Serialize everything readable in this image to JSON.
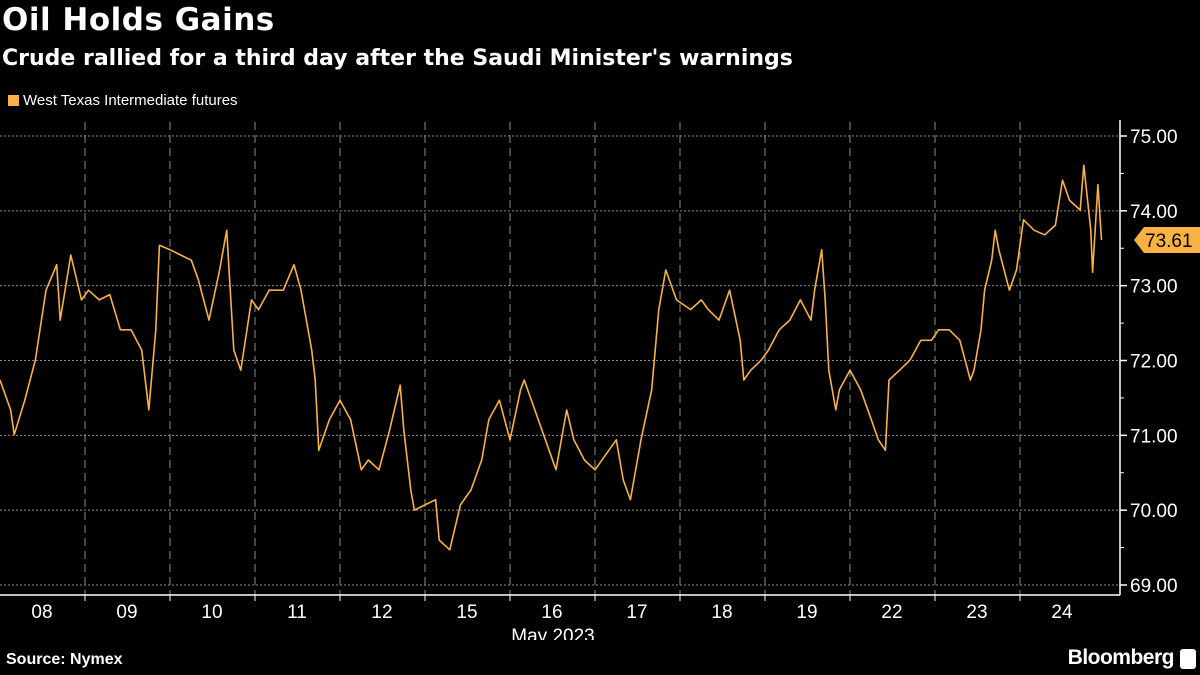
{
  "title": "Oil Holds Gains",
  "subtitle": "Crude rallied for a third day after the Saudi Minister's warnings",
  "source": "Source: Nymex",
  "brand": "Bloomberg",
  "colors": {
    "series": "#f9b143",
    "background": "#000000",
    "grid": "#8a8a8a"
  },
  "chart_data": {
    "type": "line",
    "title": "Oil Holds Gains",
    "legend": "top-left",
    "grid": true,
    "xlabel": "May 2023",
    "x_ticks": [
      "08",
      "09",
      "10",
      "11",
      "12",
      "15",
      "16",
      "17",
      "18",
      "19",
      "22",
      "23",
      "24"
    ],
    "y_ticks": [
      "69.00",
      "70.00",
      "71.00",
      "72.00",
      "73.00",
      "74.00",
      "75.00"
    ],
    "ylim": [
      69,
      75
    ],
    "y_axis_side": "right",
    "last_value_label": "73.61",
    "series": [
      {
        "name": "West Texas Intermediate futures",
        "points": [
          [
            "08 00:00",
            71.74
          ],
          [
            "08 03:00",
            71.34
          ],
          [
            "08 04:00",
            71.01
          ],
          [
            "08 07:00",
            71.47
          ],
          [
            "08 10:00",
            72.01
          ],
          [
            "08 13:00",
            72.94
          ],
          [
            "08 16:00",
            73.28
          ],
          [
            "08 17:00",
            72.54
          ],
          [
            "08 20:00",
            73.41
          ],
          [
            "08 23:00",
            72.81
          ],
          [
            "09 01:00",
            72.94
          ],
          [
            "09 04:00",
            72.81
          ],
          [
            "09 07:00",
            72.88
          ],
          [
            "09 10:00",
            72.41
          ],
          [
            "09 13:00",
            72.41
          ],
          [
            "09 16:00",
            72.14
          ],
          [
            "09 18:00",
            71.34
          ],
          [
            "09 20:00",
            72.41
          ],
          [
            "09 21:00",
            73.54
          ],
          [
            "10 00:00",
            73.48
          ],
          [
            "10 03:00",
            73.41
          ],
          [
            "10 06:00",
            73.34
          ],
          [
            "10 08:00",
            73.08
          ],
          [
            "10 11:00",
            72.54
          ],
          [
            "10 14:00",
            73.21
          ],
          [
            "10 16:00",
            73.74
          ],
          [
            "10 18:00",
            72.14
          ],
          [
            "10 20:00",
            71.87
          ],
          [
            "10 23:00",
            72.81
          ],
          [
            "11 01:00",
            72.68
          ],
          [
            "11 04:00",
            72.94
          ],
          [
            "11 08:00",
            72.94
          ],
          [
            "11 11:00",
            73.28
          ],
          [
            "11 13:00",
            72.94
          ],
          [
            "11 16:00",
            72.14
          ],
          [
            "11 17:00",
            71.74
          ],
          [
            "11 18:00",
            70.8
          ],
          [
            "11 21:00",
            71.21
          ],
          [
            "12 00:00",
            71.47
          ],
          [
            "12 03:00",
            71.21
          ],
          [
            "12 06:00",
            70.54
          ],
          [
            "12 08:00",
            70.67
          ],
          [
            "12 11:00",
            70.54
          ],
          [
            "12 14:00",
            71.07
          ],
          [
            "12 17:00",
            71.67
          ],
          [
            "12 18:00",
            71.07
          ],
          [
            "12 20:00",
            70.27
          ],
          [
            "12 21:00",
            70.0
          ],
          [
            "15 00:00",
            70.07
          ],
          [
            "15 03:00",
            70.14
          ],
          [
            "15 04:00",
            69.6
          ],
          [
            "15 07:00",
            69.47
          ],
          [
            "15 10:00",
            70.07
          ],
          [
            "15 13:00",
            70.27
          ],
          [
            "15 16:00",
            70.67
          ],
          [
            "15 18:00",
            71.21
          ],
          [
            "15 21:00",
            71.47
          ],
          [
            "16 00:00",
            70.94
          ],
          [
            "16 03:00",
            71.61
          ],
          [
            "16 04:00",
            71.74
          ],
          [
            "16 07:00",
            71.34
          ],
          [
            "16 10:00",
            70.94
          ],
          [
            "16 13:00",
            70.54
          ],
          [
            "16 16:00",
            71.34
          ],
          [
            "16 18:00",
            70.94
          ],
          [
            "16 21:00",
            70.67
          ],
          [
            "17 00:00",
            70.54
          ],
          [
            "17 03:00",
            70.74
          ],
          [
            "17 06:00",
            70.94
          ],
          [
            "17 08:00",
            70.4
          ],
          [
            "17 10:00",
            70.14
          ],
          [
            "17 13:00",
            70.94
          ],
          [
            "17 16:00",
            71.61
          ],
          [
            "17 17:00",
            72.14
          ],
          [
            "17 18:00",
            72.68
          ],
          [
            "17 20:00",
            73.21
          ],
          [
            "17 23:00",
            72.81
          ],
          [
            "18 03:00",
            72.68
          ],
          [
            "18 06:00",
            72.81
          ],
          [
            "18 08:00",
            72.68
          ],
          [
            "18 11:00",
            72.54
          ],
          [
            "18 14:00",
            72.94
          ],
          [
            "18 17:00",
            72.27
          ],
          [
            "18 18:00",
            71.74
          ],
          [
            "18 20:00",
            71.87
          ],
          [
            "18 23:00",
            72.01
          ],
          [
            "19 01:00",
            72.14
          ],
          [
            "19 04:00",
            72.41
          ],
          [
            "19 07:00",
            72.54
          ],
          [
            "19 10:00",
            72.81
          ],
          [
            "19 13:00",
            72.54
          ],
          [
            "19 14:00",
            72.94
          ],
          [
            "19 16:00",
            73.48
          ],
          [
            "19 17:00",
            72.81
          ],
          [
            "19 18:00",
            71.87
          ],
          [
            "19 20:00",
            71.34
          ],
          [
            "19 21:00",
            71.61
          ],
          [
            "22 00:00",
            71.87
          ],
          [
            "22 03:00",
            71.61
          ],
          [
            "22 06:00",
            71.21
          ],
          [
            "22 08:00",
            70.94
          ],
          [
            "22 10:00",
            70.8
          ],
          [
            "22 11:00",
            71.74
          ],
          [
            "22 14:00",
            71.87
          ],
          [
            "22 17:00",
            72.01
          ],
          [
            "22 20:00",
            72.27
          ],
          [
            "22 23:00",
            72.27
          ],
          [
            "23 01:00",
            72.41
          ],
          [
            "23 04:00",
            72.41
          ],
          [
            "23 07:00",
            72.27
          ],
          [
            "23 10:00",
            71.74
          ],
          [
            "23 11:00",
            71.87
          ],
          [
            "23 13:00",
            72.41
          ],
          [
            "23 14:00",
            72.94
          ],
          [
            "23 16:00",
            73.34
          ],
          [
            "23 17:00",
            73.74
          ],
          [
            "23 18:00",
            73.48
          ],
          [
            "23 21:00",
            72.94
          ],
          [
            "23 23:00",
            73.21
          ],
          [
            "24 01:00",
            73.88
          ],
          [
            "24 04:00",
            73.74
          ],
          [
            "24 07:00",
            73.68
          ],
          [
            "24 10:00",
            73.81
          ],
          [
            "24 12:00",
            74.41
          ],
          [
            "24 14:00",
            74.14
          ],
          [
            "24 17:00",
            74.01
          ],
          [
            "24 18:00",
            74.61
          ],
          [
            "24 20:00",
            73.74
          ],
          [
            "24 20:30",
            73.18
          ],
          [
            "24 22:00",
            74.35
          ],
          [
            "24 23:00",
            73.61
          ]
        ]
      }
    ]
  }
}
